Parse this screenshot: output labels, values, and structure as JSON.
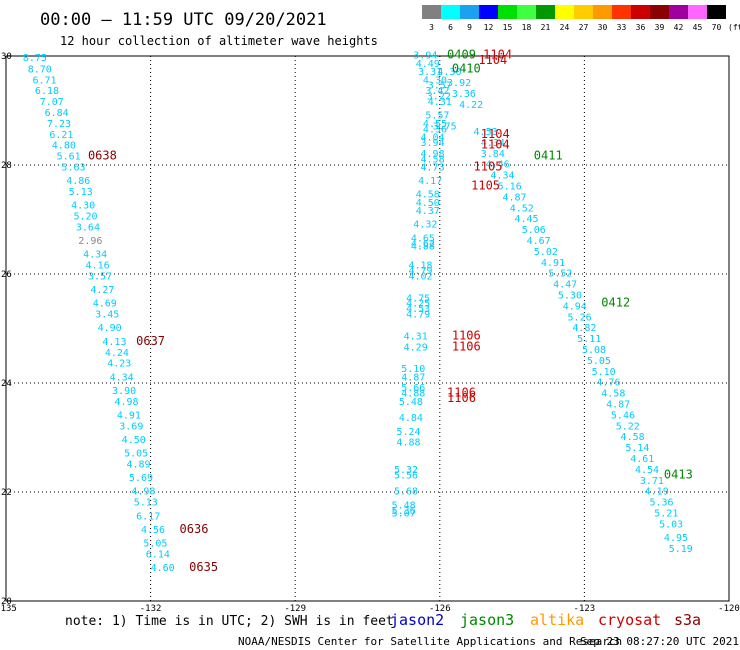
{
  "header": {
    "title": "00:00  –  11:59 UTC 09/20/2021",
    "subtitle": "12 hour collection of altimeter wave heights"
  },
  "legend": {
    "bins": [
      {
        "label": "3",
        "color": "#808080"
      },
      {
        "label": "6",
        "color": "#00ffff"
      },
      {
        "label": "9",
        "color": "#1aa1f0"
      },
      {
        "label": "12",
        "color": "#0000ff"
      },
      {
        "label": "15",
        "color": "#00e000"
      },
      {
        "label": "18",
        "color": "#40ff40"
      },
      {
        "label": "21",
        "color": "#009900"
      },
      {
        "label": "24",
        "color": "#ffff00"
      },
      {
        "label": "27",
        "color": "#ffcc00"
      },
      {
        "label": "30",
        "color": "#ff9900"
      },
      {
        "label": "33",
        "color": "#ff3300"
      },
      {
        "label": "36",
        "color": "#cc0000"
      },
      {
        "label": "39",
        "color": "#8b0000"
      },
      {
        "label": "42",
        "color": "#a000a0"
      },
      {
        "label": "45",
        "color": "#ff66ff"
      },
      {
        "label": "70",
        "color": "#000000"
      }
    ],
    "unit": "(ft)"
  },
  "footer": {
    "note": "note:  1) Time is in UTC; 2) SWH is in feet",
    "credit": "NOAA/NESDIS Center for Satellite Applications and Research",
    "timestamp": "Sep 23 08:27:20 UTC 2021",
    "satellites": [
      {
        "name": "jason2",
        "color": "#0000cc"
      },
      {
        "name": "jason3",
        "color": "#008800"
      },
      {
        "name": "altika",
        "color": "#ff9900"
      },
      {
        "name": "cryosat",
        "color": "#cc0000"
      },
      {
        "name": "s3a",
        "color": "#880000"
      }
    ]
  },
  "chart_data": {
    "type": "scatter",
    "title": "00:00  –  11:59 UTC 09/20/2021",
    "subtitle": "12 hour collection of altimeter wave heights",
    "xlim": [
      -135,
      -120
    ],
    "ylim": [
      20,
      30
    ],
    "xticks": [
      "-135",
      "-132",
      "-129",
      "-126",
      "-123",
      "-120"
    ],
    "yticks": [
      "20",
      "22",
      "24",
      "26",
      "28",
      "30"
    ],
    "grid": true,
    "colors": {
      "swh": "#00ccff",
      "swh_low": "#888888"
    },
    "tracks": [
      {
        "name": "track-west",
        "points": [
          {
            "x": -134.4,
            "y": 29.91,
            "v": "8.75"
          },
          {
            "x": -134.3,
            "y": 29.7,
            "v": "8.70"
          },
          {
            "x": -134.2,
            "y": 29.5,
            "v": "6.71"
          },
          {
            "x": -134.15,
            "y": 29.3,
            "v": "6.18"
          },
          {
            "x": -134.05,
            "y": 29.1,
            "v": "7.07"
          },
          {
            "x": -133.95,
            "y": 28.9,
            "v": "6.84"
          },
          {
            "x": -133.9,
            "y": 28.7,
            "v": "7.23"
          },
          {
            "x": -133.85,
            "y": 28.5,
            "v": "6.21"
          },
          {
            "x": -133.8,
            "y": 28.3,
            "v": "4.80"
          },
          {
            "x": -133.7,
            "y": 28.1,
            "v": "5.61"
          },
          {
            "x": -133.6,
            "y": 27.9,
            "v": "5.63"
          },
          {
            "x": -133.5,
            "y": 27.65,
            "v": "4.86"
          },
          {
            "x": -133.45,
            "y": 27.45,
            "v": "5.13"
          },
          {
            "x": -133.4,
            "y": 27.2,
            "v": "4.30"
          },
          {
            "x": -133.35,
            "y": 27.0,
            "v": "5.20"
          },
          {
            "x": -133.3,
            "y": 26.8,
            "v": "3.64"
          },
          {
            "x": -133.25,
            "y": 26.55,
            "v": "2.96",
            "low": true
          },
          {
            "x": -133.15,
            "y": 26.3,
            "v": "4.34"
          },
          {
            "x": -133.1,
            "y": 26.1,
            "v": "4.16"
          },
          {
            "x": -133.05,
            "y": 25.9,
            "v": "3.57"
          },
          {
            "x": -133.0,
            "y": 25.65,
            "v": "4.27"
          },
          {
            "x": -132.95,
            "y": 25.4,
            "v": "4.69"
          },
          {
            "x": -132.9,
            "y": 25.2,
            "v": "3.45"
          },
          {
            "x": -132.85,
            "y": 24.95,
            "v": "4.90"
          },
          {
            "x": -132.75,
            "y": 24.7,
            "v": "4.13"
          },
          {
            "x": -132.7,
            "y": 24.5,
            "v": "4.24"
          },
          {
            "x": -132.65,
            "y": 24.3,
            "v": "4.23"
          },
          {
            "x": -132.6,
            "y": 24.05,
            "v": "4.34"
          },
          {
            "x": -132.55,
            "y": 23.8,
            "v": "3.90"
          },
          {
            "x": -132.5,
            "y": 23.6,
            "v": "4.98"
          },
          {
            "x": -132.45,
            "y": 23.35,
            "v": "4.91"
          },
          {
            "x": -132.4,
            "y": 23.15,
            "v": "3.69"
          },
          {
            "x": -132.35,
            "y": 22.9,
            "v": "4.50"
          },
          {
            "x": -132.3,
            "y": 22.65,
            "v": "5.05"
          },
          {
            "x": -132.25,
            "y": 22.45,
            "v": "4.89"
          },
          {
            "x": -132.2,
            "y": 22.2,
            "v": "5.69"
          },
          {
            "x": -132.15,
            "y": 21.95,
            "v": "4.98"
          },
          {
            "x": -132.1,
            "y": 21.75,
            "v": "5.13"
          },
          {
            "x": -132.05,
            "y": 21.5,
            "v": "6.17"
          },
          {
            "x": -131.95,
            "y": 21.25,
            "v": "4.56"
          },
          {
            "x": -131.9,
            "y": 21.0,
            "v": "5.05"
          },
          {
            "x": -131.85,
            "y": 20.8,
            "v": "6.14"
          },
          {
            "x": -131.75,
            "y": 20.55,
            "v": "4.60"
          }
        ]
      },
      {
        "name": "track-central",
        "points": [
          {
            "x": -126.3,
            "y": 29.95,
            "v": "3.94"
          },
          {
            "x": -126.25,
            "y": 29.8,
            "v": "4.49"
          },
          {
            "x": -126.2,
            "y": 29.65,
            "v": "3.31"
          },
          {
            "x": -126.1,
            "y": 29.5,
            "v": "4.30"
          },
          {
            "x": -126.0,
            "y": 29.4,
            "v": "3.57"
          },
          {
            "x": -126.05,
            "y": 29.3,
            "v": "3.42"
          },
          {
            "x": -126.02,
            "y": 29.2,
            "v": "3.22"
          },
          {
            "x": -126.0,
            "y": 29.1,
            "v": "4.31"
          },
          {
            "x": -126.05,
            "y": 28.85,
            "v": "5.57"
          },
          {
            "x": -126.1,
            "y": 28.7,
            "v": "4.55"
          },
          {
            "x": -125.9,
            "y": 28.65,
            "v": "3.75"
          },
          {
            "x": -126.1,
            "y": 28.6,
            "v": "4.36"
          },
          {
            "x": -126.15,
            "y": 28.45,
            "v": "4.04"
          },
          {
            "x": -126.15,
            "y": 28.35,
            "v": "3.94"
          },
          {
            "x": -126.15,
            "y": 28.15,
            "v": "4.98"
          },
          {
            "x": -126.15,
            "y": 28.05,
            "v": "4.58"
          },
          {
            "x": -126.15,
            "y": 27.9,
            "v": "4.73"
          },
          {
            "x": -126.2,
            "y": 27.65,
            "v": "4.17"
          },
          {
            "x": -126.25,
            "y": 27.4,
            "v": "4.58"
          },
          {
            "x": -126.25,
            "y": 27.25,
            "v": "4.50"
          },
          {
            "x": -126.25,
            "y": 27.1,
            "v": "4.37"
          },
          {
            "x": -126.3,
            "y": 26.85,
            "v": "4.32"
          },
          {
            "x": -126.35,
            "y": 26.6,
            "v": "4.65"
          },
          {
            "x": -126.35,
            "y": 26.5,
            "v": "4.62"
          },
          {
            "x": -126.35,
            "y": 26.45,
            "v": "4.88"
          },
          {
            "x": -126.4,
            "y": 26.1,
            "v": "4.18"
          },
          {
            "x": -126.4,
            "y": 26.0,
            "v": "4.79"
          },
          {
            "x": -126.4,
            "y": 25.9,
            "v": "4.02"
          },
          {
            "x": -126.45,
            "y": 25.5,
            "v": "4.75"
          },
          {
            "x": -126.45,
            "y": 25.4,
            "v": "4.25"
          },
          {
            "x": -126.45,
            "y": 25.3,
            "v": "4.53"
          },
          {
            "x": -126.45,
            "y": 25.2,
            "v": "4.79"
          },
          {
            "x": -126.5,
            "y": 24.8,
            "v": "4.31"
          },
          {
            "x": -126.5,
            "y": 24.6,
            "v": "4.29"
          },
          {
            "x": -126.55,
            "y": 24.2,
            "v": "5.10"
          },
          {
            "x": -126.55,
            "y": 24.05,
            "v": "4.87"
          },
          {
            "x": -126.55,
            "y": 23.85,
            "v": "5.66"
          },
          {
            "x": -126.55,
            "y": 23.75,
            "v": "4.88"
          },
          {
            "x": -126.6,
            "y": 23.6,
            "v": "5.48"
          },
          {
            "x": -126.6,
            "y": 23.3,
            "v": "4.84"
          },
          {
            "x": -126.65,
            "y": 23.05,
            "v": "5.24"
          },
          {
            "x": -126.65,
            "y": 22.85,
            "v": "4.88"
          },
          {
            "x": -126.7,
            "y": 22.35,
            "v": "5.32"
          },
          {
            "x": -126.7,
            "y": 22.25,
            "v": "5.56"
          },
          {
            "x": -126.7,
            "y": 21.95,
            "v": "5.68"
          },
          {
            "x": -126.75,
            "y": 21.7,
            "v": "5.48"
          },
          {
            "x": -126.75,
            "y": 21.6,
            "v": "5.36"
          },
          {
            "x": -126.75,
            "y": 21.55,
            "v": "5.07"
          }
        ]
      },
      {
        "name": "track-east",
        "points": [
          {
            "x": -125.8,
            "y": 29.65,
            "v": "4.30"
          },
          {
            "x": -125.6,
            "y": 29.45,
            "v": "3.92"
          },
          {
            "x": -125.5,
            "y": 29.25,
            "v": "3.36"
          },
          {
            "x": -125.35,
            "y": 29.05,
            "v": "4.22"
          },
          {
            "x": -125.05,
            "y": 28.55,
            "v": "4.53"
          },
          {
            "x": -124.9,
            "y": 28.35,
            "v": "4.34"
          },
          {
            "x": -124.9,
            "y": 28.15,
            "v": "3.84"
          },
          {
            "x": -124.8,
            "y": 27.95,
            "v": "4.46"
          },
          {
            "x": -124.7,
            "y": 27.75,
            "v": "4.34"
          },
          {
            "x": -124.55,
            "y": 27.55,
            "v": "5.16"
          },
          {
            "x": -124.45,
            "y": 27.35,
            "v": "4.87"
          },
          {
            "x": -124.3,
            "y": 27.15,
            "v": "4.52"
          },
          {
            "x": -124.2,
            "y": 26.95,
            "v": "4.45"
          },
          {
            "x": -124.05,
            "y": 26.75,
            "v": "5.06"
          },
          {
            "x": -123.95,
            "y": 26.55,
            "v": "4.67"
          },
          {
            "x": -123.8,
            "y": 26.35,
            "v": "5.02"
          },
          {
            "x": -123.65,
            "y": 26.15,
            "v": "4.91"
          },
          {
            "x": -123.5,
            "y": 25.95,
            "v": "5.52"
          },
          {
            "x": -123.4,
            "y": 25.75,
            "v": "4.47"
          },
          {
            "x": -123.3,
            "y": 25.55,
            "v": "5.30"
          },
          {
            "x": -123.2,
            "y": 25.35,
            "v": "4.94"
          },
          {
            "x": -123.1,
            "y": 25.15,
            "v": "5.26"
          },
          {
            "x": -123.0,
            "y": 24.95,
            "v": "4.82"
          },
          {
            "x": -122.9,
            "y": 24.75,
            "v": "5.11"
          },
          {
            "x": -122.8,
            "y": 24.55,
            "v": "5.08"
          },
          {
            "x": -122.7,
            "y": 24.35,
            "v": "5.05"
          },
          {
            "x": -122.6,
            "y": 24.15,
            "v": "5.10"
          },
          {
            "x": -122.5,
            "y": 23.95,
            "v": "4.76"
          },
          {
            "x": -122.4,
            "y": 23.75,
            "v": "4.58"
          },
          {
            "x": -122.3,
            "y": 23.55,
            "v": "4.87"
          },
          {
            "x": -122.2,
            "y": 23.35,
            "v": "5.46"
          },
          {
            "x": -122.1,
            "y": 23.15,
            "v": "5.22"
          },
          {
            "x": -122.0,
            "y": 22.95,
            "v": "4.58"
          },
          {
            "x": -121.9,
            "y": 22.75,
            "v": "5.14"
          },
          {
            "x": -121.8,
            "y": 22.55,
            "v": "4.61"
          },
          {
            "x": -121.7,
            "y": 22.35,
            "v": "4.54"
          },
          {
            "x": -121.6,
            "y": 22.15,
            "v": "3.71"
          },
          {
            "x": -121.5,
            "y": 21.95,
            "v": "4.19"
          },
          {
            "x": -121.4,
            "y": 21.75,
            "v": "5.36"
          },
          {
            "x": -121.3,
            "y": 21.55,
            "v": "5.21"
          },
          {
            "x": -121.2,
            "y": 21.35,
            "v": "5.03"
          },
          {
            "x": -121.1,
            "y": 21.1,
            "v": "4.95"
          },
          {
            "x": -121.0,
            "y": 20.9,
            "v": "5.19"
          }
        ]
      }
    ],
    "pass_labels": [
      {
        "x": -133.3,
        "y": 28.1,
        "t": "0638",
        "color": "#880000"
      },
      {
        "x": -132.3,
        "y": 24.7,
        "t": "0637",
        "color": "#880000"
      },
      {
        "x": -131.4,
        "y": 21.25,
        "t": "0636",
        "color": "#880000"
      },
      {
        "x": -131.2,
        "y": 20.55,
        "t": "0635",
        "color": "#880000"
      },
      {
        "x": -125.85,
        "y": 29.95,
        "t": "0409",
        "color": "#008800"
      },
      {
        "x": -125.75,
        "y": 29.7,
        "t": "0410",
        "color": "#008800"
      },
      {
        "x": -125.1,
        "y": 29.95,
        "t": "1104",
        "color": "#cc0000"
      },
      {
        "x": -125.2,
        "y": 29.85,
        "t": "1104",
        "color": "#cc0000"
      },
      {
        "x": -125.15,
        "y": 28.5,
        "t": "1104",
        "color": "#cc0000"
      },
      {
        "x": -125.15,
        "y": 28.3,
        "t": "1104",
        "color": "#cc0000"
      },
      {
        "x": -125.3,
        "y": 27.9,
        "t": "1105",
        "color": "#cc0000"
      },
      {
        "x": -125.35,
        "y": 27.55,
        "t": "1105",
        "color": "#cc0000"
      },
      {
        "x": -124.05,
        "y": 28.1,
        "t": "0411",
        "color": "#008800"
      },
      {
        "x": -122.65,
        "y": 25.4,
        "t": "0412",
        "color": "#008800"
      },
      {
        "x": -125.75,
        "y": 24.8,
        "t": "1106",
        "color": "#cc0000"
      },
      {
        "x": -125.75,
        "y": 24.6,
        "t": "1106",
        "color": "#cc0000"
      },
      {
        "x": -125.85,
        "y": 23.75,
        "t": "1106",
        "color": "#cc0000"
      },
      {
        "x": -125.85,
        "y": 23.65,
        "t": "1106",
        "color": "#cc0000"
      },
      {
        "x": -121.35,
        "y": 22.25,
        "t": "0413",
        "color": "#008800"
      }
    ]
  }
}
